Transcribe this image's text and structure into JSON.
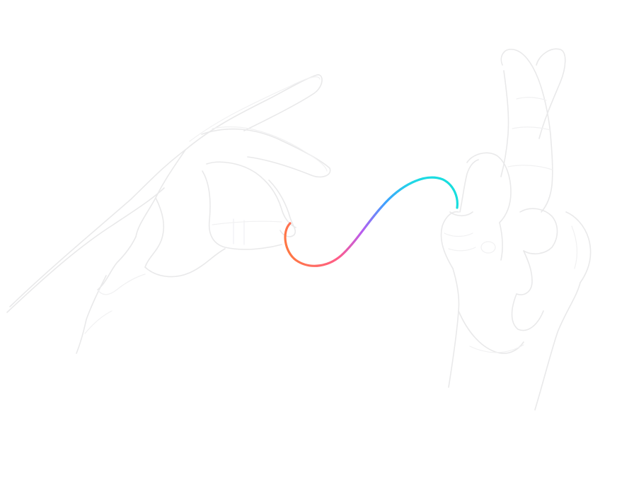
{
  "illustration": {
    "subject": "hands-connected-by-thread",
    "line_color": "#e9e9ea",
    "thread_gradient": [
      "#ff7a3d",
      "#ff5c8a",
      "#b85cf0",
      "#3fa0ff",
      "#21d8e6",
      "#18dede"
    ]
  }
}
